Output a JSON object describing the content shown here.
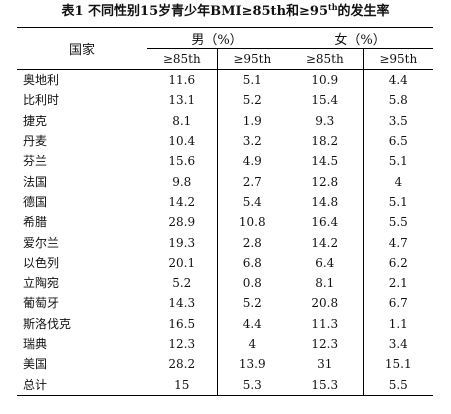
{
  "caption": {
    "prefix": "表1  不同性别15岁青少年BMI≥85th和≥95",
    "sup": "th",
    "suffix": "的发生率"
  },
  "headers": {
    "country": "国家",
    "male": "男（%）",
    "female": "女（%）",
    "p85": "≥85th",
    "p95": "≥95th"
  },
  "rows": [
    {
      "country": "奥地利",
      "m85": "11.6",
      "m95": "5.1",
      "f85": "10.9",
      "f95": "4.4"
    },
    {
      "country": "比利时",
      "m85": "13.1",
      "m95": "5.2",
      "f85": "15.4",
      "f95": "5.8"
    },
    {
      "country": "捷克",
      "m85": "8.1",
      "m95": "1.9",
      "f85": "9.3",
      "f95": "3.5"
    },
    {
      "country": "丹麦",
      "m85": "10.4",
      "m95": "3.2",
      "f85": "18.2",
      "f95": "6.5"
    },
    {
      "country": "芬兰",
      "m85": "15.6",
      "m95": "4.9",
      "f85": "14.5",
      "f95": "5.1"
    },
    {
      "country": "法国",
      "m85": "9.8",
      "m95": "2.7",
      "f85": "12.8",
      "f95": "4"
    },
    {
      "country": "德国",
      "m85": "14.2",
      "m95": "5.4",
      "f85": "14.8",
      "f95": "5.1"
    },
    {
      "country": "希腊",
      "m85": "28.9",
      "m95": "10.8",
      "f85": "16.4",
      "f95": "5.5"
    },
    {
      "country": "爱尔兰",
      "m85": "19.3",
      "m95": "2.8",
      "f85": "14.2",
      "f95": "4.7"
    },
    {
      "country": "以色列",
      "m85": "20.1",
      "m95": "6.8",
      "f85": "6.4",
      "f95": "6.2"
    },
    {
      "country": "立陶宛",
      "m85": "5.2",
      "m95": "0.8",
      "f85": "8.1",
      "f95": "2.1"
    },
    {
      "country": "葡萄牙",
      "m85": "14.3",
      "m95": "5.2",
      "f85": "20.8",
      "f95": "6.7"
    },
    {
      "country": "斯洛伐克",
      "m85": "16.5",
      "m95": "4.4",
      "f85": "11.3",
      "f95": "1.1"
    },
    {
      "country": "瑞典",
      "m85": "12.3",
      "m95": "4",
      "f85": "12.3",
      "f95": "3.4"
    },
    {
      "country": "美国",
      "m85": "28.2",
      "m95": "13.9",
      "f85": "31",
      "f95": "15.1"
    },
    {
      "country": "总计",
      "m85": "15",
      "m95": "5.3",
      "f85": "15.3",
      "f95": "5.5"
    }
  ]
}
